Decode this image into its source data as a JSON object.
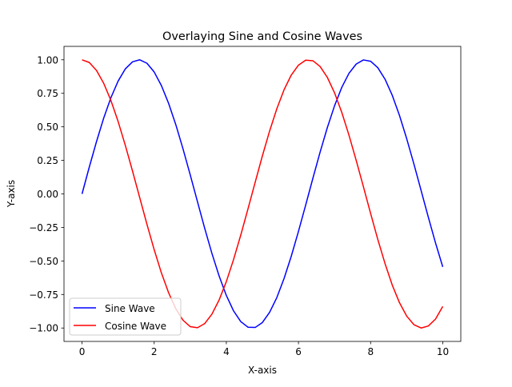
{
  "chart_data": {
    "type": "line",
    "title": "Overlaying Sine and Cosine Waves",
    "xlabel": "X-axis",
    "ylabel": "Y-axis",
    "xlim": [
      -0.5,
      10.5
    ],
    "ylim": [
      -1.1,
      1.1
    ],
    "xticks": [
      0,
      2,
      4,
      6,
      8,
      10
    ],
    "xtick_labels": [
      "0",
      "2",
      "4",
      "6",
      "8",
      "10"
    ],
    "yticks": [
      -1.0,
      -0.75,
      -0.5,
      -0.25,
      0.0,
      0.25,
      0.5,
      0.75,
      1.0
    ],
    "ytick_labels": [
      "−1.00",
      "−0.75",
      "−0.50",
      "−0.25",
      "0.00",
      "0.25",
      "0.50",
      "0.75",
      "1.00"
    ],
    "grid": false,
    "legend_position": "lower-left",
    "x": [
      0,
      0.2,
      0.4,
      0.6,
      0.8,
      1.0,
      1.2,
      1.4,
      1.6,
      1.8,
      2.0,
      2.2,
      2.4,
      2.6,
      2.8,
      3.0,
      3.2,
      3.4,
      3.6,
      3.8,
      4.0,
      4.2,
      4.4,
      4.6,
      4.8,
      5.0,
      5.2,
      5.4,
      5.6,
      5.8,
      6.0,
      6.2,
      6.4,
      6.6,
      6.8,
      7.0,
      7.2,
      7.4,
      7.6,
      7.8,
      8.0,
      8.2,
      8.4,
      8.6,
      8.8,
      9.0,
      9.2,
      9.4,
      9.6,
      9.8,
      10.0
    ],
    "series": [
      {
        "name": "Sine Wave",
        "color": "#0000ff",
        "values": [
          0,
          0.199,
          0.389,
          0.565,
          0.717,
          0.841,
          0.932,
          0.985,
          1.0,
          0.974,
          0.909,
          0.808,
          0.675,
          0.516,
          0.335,
          0.141,
          -0.058,
          -0.256,
          -0.443,
          -0.612,
          -0.757,
          -0.872,
          -0.952,
          -0.994,
          -0.996,
          -0.959,
          -0.883,
          -0.773,
          -0.631,
          -0.465,
          -0.279,
          -0.083,
          0.117,
          0.312,
          0.494,
          0.657,
          0.794,
          0.899,
          0.968,
          0.999,
          0.989,
          0.941,
          0.855,
          0.735,
          0.585,
          0.412,
          0.223,
          0.025,
          -0.174,
          -0.366,
          -0.544
        ]
      },
      {
        "name": "Cosine Wave",
        "color": "#ff0000",
        "values": [
          1.0,
          0.98,
          0.921,
          0.825,
          0.697,
          0.54,
          0.362,
          0.17,
          -0.029,
          -0.227,
          -0.416,
          -0.589,
          -0.737,
          -0.857,
          -0.942,
          -0.99,
          -0.998,
          -0.967,
          -0.897,
          -0.791,
          -0.654,
          -0.49,
          -0.307,
          -0.112,
          0.087,
          0.284,
          0.469,
          0.635,
          0.776,
          0.886,
          0.96,
          0.997,
          0.993,
          0.95,
          0.869,
          0.754,
          0.608,
          0.438,
          0.25,
          0.054,
          -0.146,
          -0.34,
          -0.52,
          -0.68,
          -0.811,
          -0.911,
          -0.975,
          -1.0,
          -0.985,
          -0.933,
          -0.839
        ]
      }
    ]
  }
}
